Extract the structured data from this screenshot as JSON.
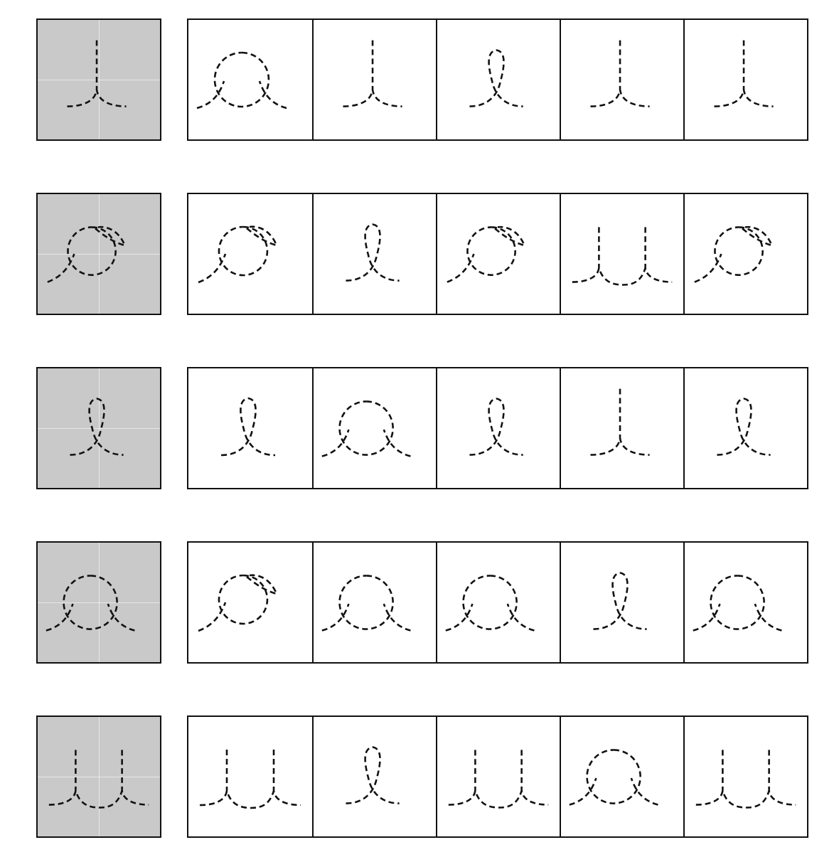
{
  "worksheet": {
    "rows": [
      {
        "sample": "cusp-stem",
        "choices": [
          "circle-feet",
          "cusp-stem",
          "loop",
          "cusp-stem",
          "cusp-stem"
        ]
      },
      {
        "sample": "circle-hook",
        "choices": [
          "circle-hook",
          "loop",
          "circle-hook",
          "double-cusp",
          "circle-hook"
        ]
      },
      {
        "sample": "loop",
        "choices": [
          "loop",
          "circle-feet",
          "loop",
          "cusp-stem",
          "loop"
        ]
      },
      {
        "sample": "circle-feet",
        "choices": [
          "circle-hook",
          "circle-feet",
          "circle-feet",
          "loop",
          "circle-feet"
        ]
      },
      {
        "sample": "double-cusp",
        "choices": [
          "double-cusp",
          "loop",
          "double-cusp",
          "circle-feet",
          "double-cusp"
        ]
      }
    ],
    "colors": {
      "sample_bg": "#c9c9c9",
      "stroke": "#111111",
      "cell_bg": "#ffffff"
    }
  }
}
